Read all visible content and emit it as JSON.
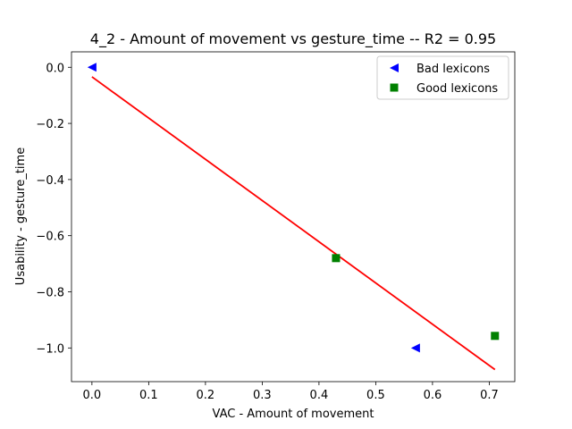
{
  "chart_data": {
    "type": "scatter",
    "title": "4_2 - Amount of movement  vs  gesture_time -- R2 = 0.95",
    "xlabel": "VAC - Amount of movement",
    "ylabel": "Usability - gesture_time",
    "xlim": [
      -0.036,
      0.745
    ],
    "ylim": [
      -1.12,
      0.055
    ],
    "xticks": [
      0.0,
      0.1,
      0.2,
      0.3,
      0.4,
      0.5,
      0.6,
      0.7
    ],
    "xtick_labels": [
      "0.0",
      "0.1",
      "0.2",
      "0.3",
      "0.4",
      "0.5",
      "0.6",
      "0.7"
    ],
    "yticks": [
      0.0,
      -0.2,
      -0.4,
      -0.6,
      -0.8,
      -1.0
    ],
    "ytick_labels": [
      "0.0",
      "−0.2",
      "−0.4",
      "−0.6",
      "−0.8",
      "−1.0"
    ],
    "grid": false,
    "legend_position": "top-right",
    "series": [
      {
        "name": "Bad lexicons",
        "marker": "triangle-left",
        "color": "#0000ff",
        "points": [
          {
            "x": 0.0,
            "y": 0.0
          },
          {
            "x": 0.57,
            "y": -1.0
          }
        ]
      },
      {
        "name": "Good lexicons",
        "marker": "square",
        "color": "#008000",
        "points": [
          {
            "x": 0.43,
            "y": -0.68
          },
          {
            "x": 0.71,
            "y": -0.957
          }
        ]
      }
    ],
    "fit_line": {
      "color": "#ff0000",
      "x": [
        0.0,
        0.71
      ],
      "y": [
        -0.034,
        -1.077
      ]
    }
  }
}
